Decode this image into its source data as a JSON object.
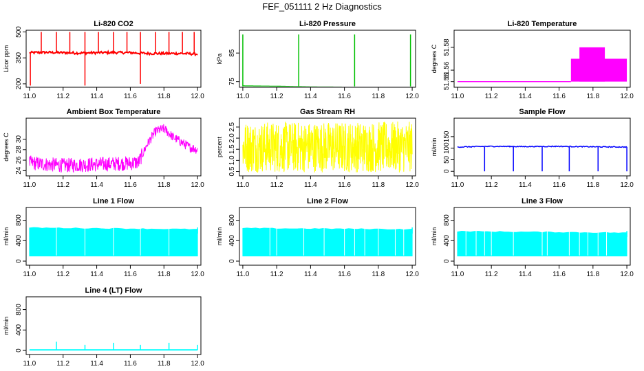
{
  "main_title": "FEF_051111  2 Hz Diagnostics",
  "colors": {
    "red": "#ff0000",
    "green": "#00c000",
    "magenta": "#ff00ff",
    "yellow": "#ffff00",
    "blue": "#0000ff",
    "cyan": "#00ffff"
  },
  "chart_data": [
    {
      "type": "line",
      "title": "Li-820 CO2",
      "ylabel": "Licor ppm",
      "color": "red",
      "xlim": [
        10.98,
        12.02
      ],
      "ylim": [
        180,
        510
      ],
      "xticks": [
        "11.0",
        "11.2",
        "11.4",
        "11.6",
        "11.8",
        "12.0"
      ],
      "yticks": [
        "200",
        "350",
        "500"
      ],
      "series": [
        {
          "x": [
            11.0,
            11.1,
            11.2,
            11.3,
            11.4,
            11.5,
            11.6,
            11.7,
            11.8,
            11.9,
            12.0
          ],
          "values": [
            380,
            382,
            380,
            378,
            380,
            381,
            380,
            376,
            375,
            376,
            372
          ]
        }
      ]
    },
    {
      "type": "line",
      "title": "Li-820 Pressure",
      "ylabel": "kPa",
      "color": "green",
      "xlim": [
        10.98,
        12.02
      ],
      "ylim": [
        73,
        93
      ],
      "xticks": [
        "11.0",
        "11.2",
        "11.4",
        "11.6",
        "11.8",
        "12.0"
      ],
      "yticks": [
        "75",
        "85"
      ],
      "series": [
        {
          "x": [
            11.0,
            11.2,
            11.4,
            11.6,
            11.8,
            12.0
          ],
          "values": [
            73.5,
            73.4,
            73.2,
            73.1,
            72.9,
            72.8
          ]
        }
      ]
    },
    {
      "type": "area",
      "title": "Li-820 Temperature",
      "ylabel": "degrees C",
      "color": "magenta",
      "xlim": [
        10.98,
        12.02
      ],
      "ylim": [
        51.545,
        51.595
      ],
      "xticks": [
        "11.0",
        "11.2",
        "11.4",
        "11.6",
        "11.8",
        "12.0"
      ],
      "yticks": [
        "51.55",
        "51.56",
        "51.58"
      ],
      "series": [
        {
          "x": [
            11.0,
            11.67,
            11.67,
            11.72,
            11.72,
            11.87,
            11.87,
            12.0
          ],
          "values": [
            51.55,
            51.55,
            51.57,
            51.57,
            51.58,
            51.58,
            51.57,
            51.57
          ]
        }
      ]
    },
    {
      "type": "line",
      "title": "Ambient Box Temperature",
      "ylabel": "degrees C",
      "color": "magenta",
      "xlim": [
        10.98,
        12.02
      ],
      "ylim": [
        23,
        34
      ],
      "xticks": [
        "11.0",
        "11.2",
        "11.4",
        "11.6",
        "11.8",
        "12.0"
      ],
      "yticks": [
        "24",
        "26",
        "28",
        "30"
      ],
      "series": [
        {
          "x": [
            11.0,
            11.1,
            11.2,
            11.3,
            11.4,
            11.5,
            11.6,
            11.65,
            11.7,
            11.75,
            11.8,
            11.85,
            11.9,
            11.95,
            12.0
          ],
          "values": [
            25.5,
            25.2,
            25.0,
            25.1,
            25.2,
            25.3,
            25.4,
            25.6,
            29.0,
            31.5,
            32.0,
            30.5,
            29.5,
            28.5,
            28.0
          ]
        }
      ]
    },
    {
      "type": "line",
      "title": "Gas Stream RH",
      "ylabel": "percent",
      "color": "yellow",
      "xlim": [
        10.98,
        12.02
      ],
      "ylim": [
        0.3,
        2.9
      ],
      "xticks": [
        "11.0",
        "11.2",
        "11.4",
        "11.6",
        "11.8",
        "12.0"
      ],
      "yticks": [
        "0.5",
        "1.0",
        "1.5",
        "2.0",
        "2.5"
      ],
      "series": [
        {
          "x": [
            11.0,
            12.0
          ],
          "values": [
            1.5,
            1.5
          ]
        }
      ]
    },
    {
      "type": "line",
      "title": "Sample Flow",
      "ylabel": "ml/min",
      "color": "blue",
      "xlim": [
        10.98,
        12.02
      ],
      "ylim": [
        -20,
        230
      ],
      "xticks": [
        "11.0",
        "11.2",
        "11.4",
        "11.6",
        "11.8",
        "12.0"
      ],
      "yticks": [
        "0",
        "50",
        "100",
        "150"
      ],
      "series": [
        {
          "x": [
            11.0,
            11.2,
            11.4,
            11.6,
            11.8,
            12.0
          ],
          "values": [
            105,
            108,
            107,
            108,
            106,
            105
          ]
        }
      ]
    },
    {
      "type": "line",
      "title": "Line 1 Flow",
      "ylabel": "ml/min",
      "color": "cyan",
      "xlim": [
        10.98,
        12.02
      ],
      "ylim": [
        -80,
        1050
      ],
      "xticks": [
        "11.0",
        "11.2",
        "11.4",
        "11.6",
        "11.8",
        "12.0"
      ],
      "yticks": [
        "0",
        "400",
        "800"
      ],
      "series": [
        {
          "x": [
            11.0,
            12.0
          ],
          "values": [
            650,
            620
          ]
        }
      ]
    },
    {
      "type": "line",
      "title": "Line 2 Flow",
      "ylabel": "ml/min",
      "color": "cyan",
      "xlim": [
        10.98,
        12.02
      ],
      "ylim": [
        -80,
        1050
      ],
      "xticks": [
        "11.0",
        "11.2",
        "11.4",
        "11.6",
        "11.8",
        "12.0"
      ],
      "yticks": [
        "0",
        "400",
        "800"
      ],
      "series": [
        {
          "x": [
            11.0,
            12.0
          ],
          "values": [
            640,
            620
          ]
        }
      ]
    },
    {
      "type": "line",
      "title": "Line 3 Flow",
      "ylabel": "ml/min",
      "color": "cyan",
      "xlim": [
        10.98,
        12.02
      ],
      "ylim": [
        -80,
        1050
      ],
      "xticks": [
        "11.0",
        "11.2",
        "11.4",
        "11.6",
        "11.8",
        "12.0"
      ],
      "yticks": [
        "0",
        "400",
        "800"
      ],
      "series": [
        {
          "x": [
            11.0,
            12.0
          ],
          "values": [
            580,
            550
          ]
        }
      ]
    },
    {
      "type": "line",
      "title": "Line 4 (LT) Flow",
      "ylabel": "ml/min",
      "color": "cyan",
      "xlim": [
        10.98,
        12.02
      ],
      "ylim": [
        -80,
        1050
      ],
      "xticks": [
        "11.0",
        "11.2",
        "11.4",
        "11.6",
        "11.8",
        "12.0"
      ],
      "yticks": [
        "0",
        "400",
        "800"
      ],
      "series": [
        {
          "x": [
            11.0,
            11.16,
            11.33,
            11.5,
            11.66,
            11.83,
            12.0
          ],
          "values": [
            10,
            10,
            10,
            10,
            10,
            10,
            10
          ]
        }
      ]
    }
  ]
}
